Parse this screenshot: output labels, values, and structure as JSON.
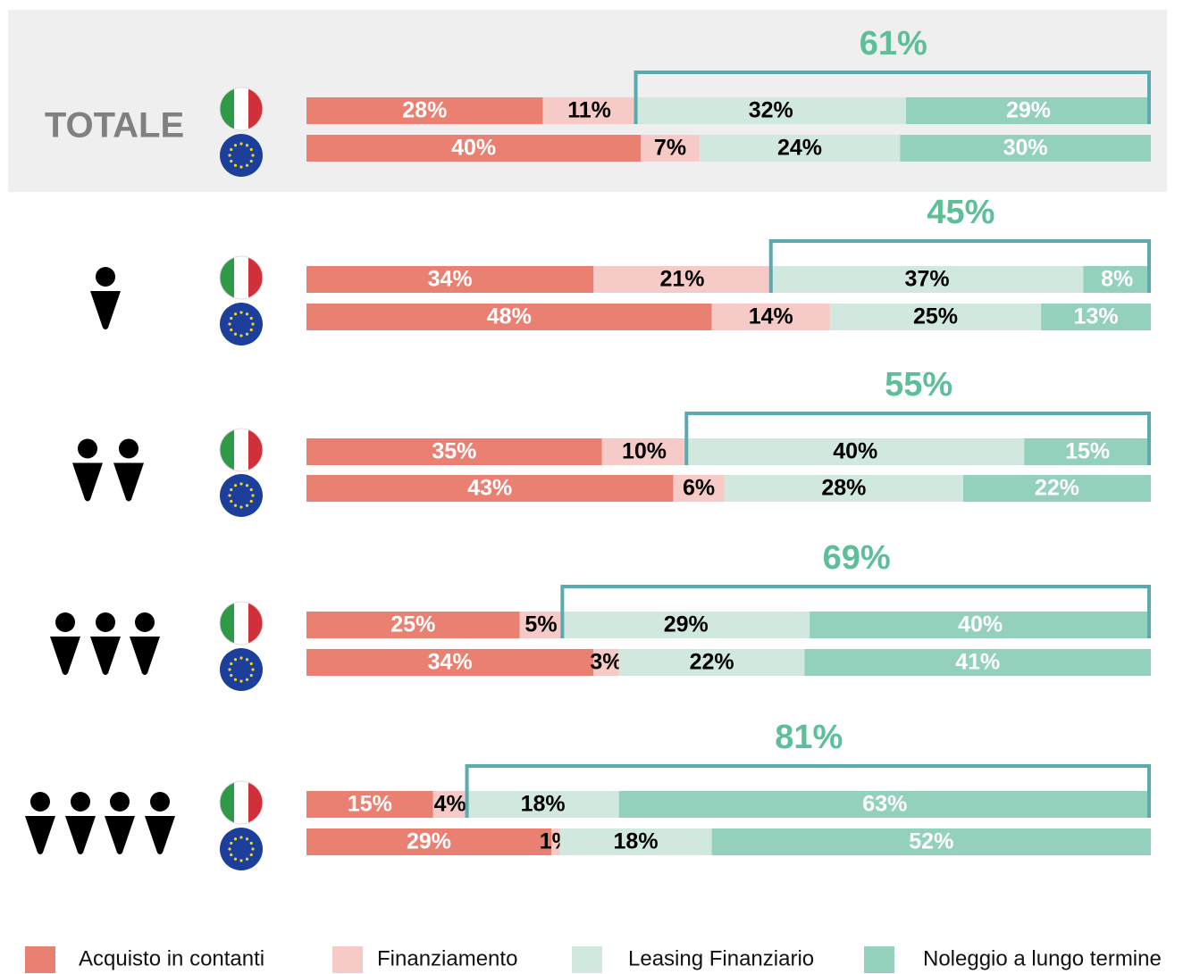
{
  "chart_data": {
    "type": "bar",
    "orientation": "horizontal",
    "stacked": true,
    "categories": [
      "TOTALE",
      null,
      null,
      null,
      null
    ],
    "series": [
      {
        "name": "Acquisto in contanti",
        "color": "#ea8072",
        "label_color": "#ffffff",
        "values": [
          [
            28,
            40
          ],
          [
            34,
            48
          ],
          [
            35,
            43
          ],
          [
            25,
            34
          ],
          [
            15,
            29
          ]
        ],
        "value_labels": [
          [
            "28%",
            "40%"
          ],
          [
            "34%",
            "48%"
          ],
          [
            "35%",
            "43%"
          ],
          [
            "25%",
            "34%"
          ],
          [
            "15%",
            "29%"
          ]
        ]
      },
      {
        "name": "Finanziamento",
        "color": "#f6cac6",
        "label_color": "#000000",
        "values": [
          [
            11,
            7
          ],
          [
            21,
            14
          ],
          [
            10,
            6
          ],
          [
            5,
            3
          ],
          [
            4,
            1
          ]
        ],
        "value_labels": [
          [
            "11%",
            "7%"
          ],
          [
            "21%",
            "14%"
          ],
          [
            "10%",
            "6%"
          ],
          [
            "5%",
            "3%"
          ],
          [
            "4%",
            "1%"
          ]
        ]
      },
      {
        "name": "Leasing Finanziario",
        "color": "#d0e8de",
        "label_color": "#000000",
        "values": [
          [
            32,
            24
          ],
          [
            37,
            25
          ],
          [
            40,
            28
          ],
          [
            29,
            22
          ],
          [
            18,
            18
          ]
        ],
        "value_labels": [
          [
            "32%",
            "24%"
          ],
          [
            "37%",
            "25%"
          ],
          [
            "40%",
            "28%"
          ],
          [
            "29%",
            "22%"
          ],
          [
            "18%",
            "18%"
          ]
        ]
      },
      {
        "name": "Noleggio a lungo termine",
        "color": "#93d1bc",
        "label_color": "#ffffff",
        "values": [
          [
            29,
            30
          ],
          [
            8,
            13
          ],
          [
            15,
            22
          ],
          [
            40,
            41
          ],
          [
            63,
            52
          ]
        ],
        "value_labels": [
          [
            "29%",
            "30%"
          ],
          [
            "8%",
            "13%"
          ],
          [
            "15%",
            "22%"
          ],
          [
            "40%",
            "41%"
          ],
          [
            "63%",
            "52%"
          ]
        ]
      }
    ],
    "annotations": {
      "values": [
        61,
        45,
        55,
        69,
        81
      ],
      "value_labels": [
        "61%",
        "45%",
        "55%",
        "69%",
        "81%"
      ],
      "color": "#5cbf98",
      "bracket_color": "#5aaab0"
    }
  }
}
